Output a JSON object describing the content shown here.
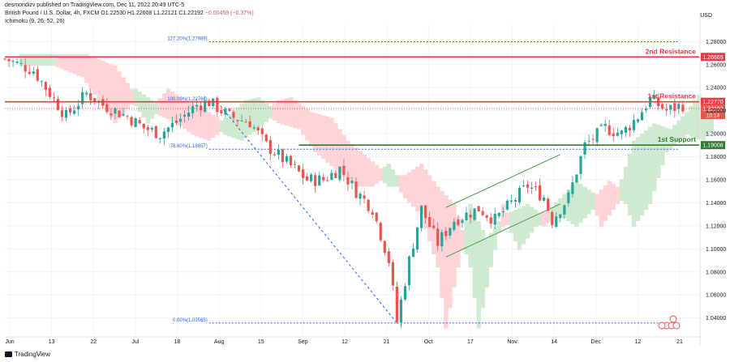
{
  "header": {
    "published": "desmondizv published on TradingView.com, Dec 11, 2022 20:49 UTC-5",
    "symbol": "British Pound / U.S. Dollar, 4h, FXCM",
    "ohlc": "O1.22530 H1.22608 L1.22121 C1.22192",
    "change": "−0.00459 (−0.37%)",
    "indicator": "Ichimoku (9, 26, 52, 26)"
  },
  "currency": "USD",
  "footer": {
    "brand": "TradingView",
    "logo_icon": "tradingview-logo-icon"
  },
  "colors": {
    "up": "#26a69a",
    "down": "#ef5350",
    "resistance": "#f23645",
    "support": "#2e7d32",
    "fib": "#2962ff",
    "cloud_bull": "#c8e6c9",
    "cloud_bear": "#ffcdd2"
  },
  "chart_data": {
    "type": "candlestick",
    "ylim": [
      1.025,
      1.295
    ],
    "y_ticks": [
      "1.28000",
      "1.26000",
      "1.24000",
      "1.22000",
      "1.20000",
      "1.18000",
      "1.16000",
      "1.14000",
      "1.12000",
      "1.10000",
      "1.08000",
      "1.06000",
      "1.04000"
    ],
    "x_ticks": [
      "Jun",
      "13",
      "22",
      "Jul",
      "18",
      "Aug",
      "15",
      "Sep",
      "12",
      "21",
      "Oct",
      "17",
      "Nov",
      "14",
      "Dec",
      "12",
      "21"
    ],
    "horizontal_lines": [
      {
        "label": "2nd Resistance",
        "value": 1.26669,
        "price_tag": "1.26669"
      },
      {
        "label": "1st Resistance",
        "value": 1.2277,
        "price_tag": "1.22770"
      },
      {
        "label": "1st Support",
        "value": 1.19008,
        "price_tag": "1.19008"
      }
    ],
    "current_price": {
      "value": 1.22192,
      "price_tag": "1.22192",
      "countdown": "10:14"
    },
    "fibonacci": [
      {
        "label": "127.20%(1.27989)",
        "value": 1.27989
      },
      {
        "label": "100.00%(1.22766)",
        "value": 1.22766
      },
      {
        "label": "78.60%(1.18657)",
        "value": 1.18657
      },
      {
        "label": "0.00%(1.03565)",
        "value": 1.03565
      }
    ],
    "price_path": [
      [
        0,
        1.265
      ],
      [
        7,
        1.255
      ],
      [
        11,
        1.235
      ],
      [
        15,
        1.215
      ],
      [
        20,
        1.235
      ],
      [
        24,
        1.225
      ],
      [
        30,
        1.215
      ],
      [
        34,
        1.205
      ],
      [
        38,
        1.2
      ],
      [
        42,
        1.21
      ],
      [
        47,
        1.225
      ],
      [
        50,
        1.2276
      ],
      [
        55,
        1.215
      ],
      [
        60,
        1.21
      ],
      [
        64,
        1.19
      ],
      [
        69,
        1.175
      ],
      [
        74,
        1.16
      ],
      [
        78,
        1.16
      ],
      [
        82,
        1.17
      ],
      [
        86,
        1.15
      ],
      [
        90,
        1.135
      ],
      [
        94,
        1.09
      ],
      [
        96,
        1.037
      ],
      [
        99,
        1.09
      ],
      [
        102,
        1.135
      ],
      [
        106,
        1.105
      ],
      [
        110,
        1.125
      ],
      [
        116,
        1.135
      ],
      [
        120,
        1.125
      ],
      [
        124,
        1.14
      ],
      [
        128,
        1.155
      ],
      [
        132,
        1.145
      ],
      [
        134,
        1.125
      ],
      [
        138,
        1.145
      ],
      [
        142,
        1.19
      ],
      [
        147,
        1.205
      ],
      [
        151,
        1.2
      ],
      [
        155,
        1.215
      ],
      [
        158,
        1.23
      ],
      [
        162,
        1.22
      ],
      [
        166,
        1.225
      ]
    ]
  }
}
